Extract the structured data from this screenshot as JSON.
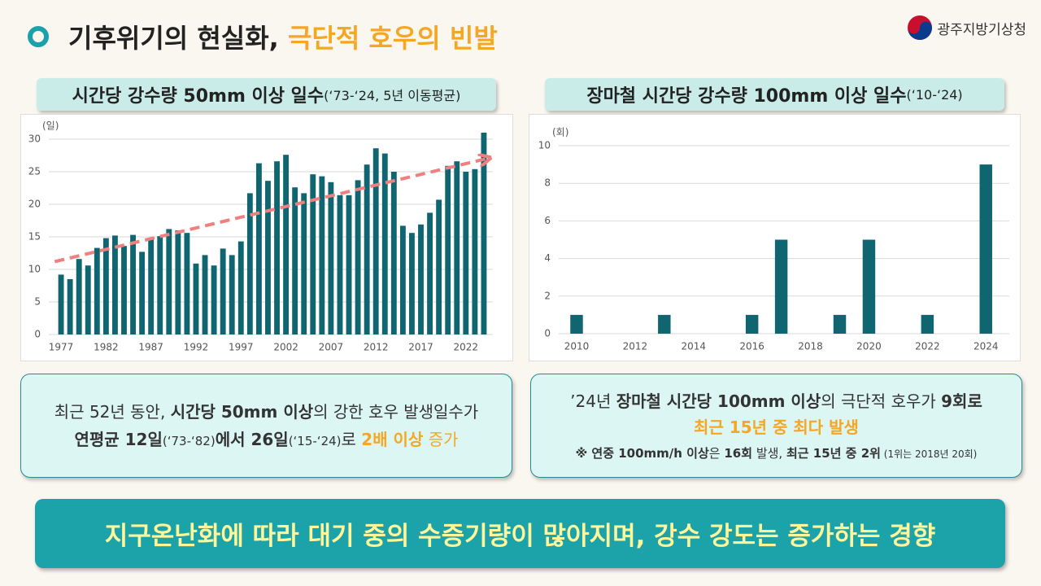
{
  "header": {
    "title": "기후위기의 현실화, ",
    "title_highlight": "극단적 호우의 빈발",
    "logo": "광주지방기상청"
  },
  "chart_data": [
    {
      "type": "bar",
      "title": "시간당 강수량 50mm 이상 일수",
      "subtitle": "(‘73-‘24, 5년 이동평균)",
      "y_label": "(일)",
      "color": "#0f6670",
      "x": [
        1977,
        1978,
        1979,
        1980,
        1981,
        1982,
        1983,
        1984,
        1985,
        1986,
        1987,
        1988,
        1989,
        1990,
        1991,
        1992,
        1993,
        1994,
        1995,
        1996,
        1997,
        1998,
        1999,
        2000,
        2001,
        2002,
        2003,
        2004,
        2005,
        2006,
        2007,
        2008,
        2009,
        2010,
        2011,
        2012,
        2013,
        2014,
        2015,
        2016,
        2017,
        2018,
        2019,
        2020,
        2021,
        2022,
        2023,
        2024
      ],
      "values": [
        9.2,
        8.5,
        11.6,
        10.6,
        13.3,
        14.8,
        15.2,
        13.6,
        15.3,
        12.7,
        14.6,
        15.1,
        16.2,
        16.0,
        15.6,
        10.9,
        12.2,
        10.6,
        13.2,
        12.2,
        14.3,
        21.7,
        26.3,
        23.6,
        26.6,
        27.6,
        22.6,
        21.7,
        24.6,
        24.3,
        23.4,
        21.4,
        21.4,
        23.7,
        26.1,
        28.6,
        27.8,
        25.0,
        16.7,
        15.6,
        16.9,
        18.7,
        20.7,
        25.9,
        26.6,
        25.0,
        25.4,
        31.0
      ],
      "xlim": [
        1976,
        2025
      ],
      "xticks": [
        1977,
        1982,
        1987,
        1992,
        1997,
        2002,
        2007,
        2012,
        2017,
        2022
      ],
      "ylim": [
        0,
        30
      ],
      "yticks": [
        0,
        5,
        10,
        15,
        20,
        25,
        30
      ],
      "grid": true,
      "trend": {
        "color": "#f08080",
        "x": [
          1976.3,
          2024.3
        ],
        "values": [
          11.2,
          27.0
        ]
      }
    },
    {
      "type": "bar",
      "title": "장마철 시간당 강수량 100mm 이상 일수",
      "subtitle": "(‘10-‘24)",
      "y_label": "(회)",
      "color": "#0f6670",
      "x": [
        2010,
        2011,
        2012,
        2013,
        2014,
        2015,
        2016,
        2017,
        2018,
        2019,
        2020,
        2021,
        2022,
        2023,
        2024
      ],
      "values": [
        1,
        0,
        0,
        1,
        0,
        0,
        1,
        5,
        0,
        1,
        5,
        0,
        1,
        0,
        9
      ],
      "xlim": [
        2009.5,
        2024.8
      ],
      "xticks": [
        2010,
        2012,
        2014,
        2016,
        2018,
        2020,
        2022,
        2024
      ],
      "ylim": [
        0,
        10
      ],
      "yticks": [
        0,
        2,
        4,
        6,
        8,
        10
      ],
      "grid": true
    }
  ],
  "notes": [
    {
      "lines": [
        [
          "최근 52년 동안, ",
          "시간당 50mm 이상",
          "의 강한 호우 발생일수가"
        ],
        [
          "연평균 12일",
          "(‘73-‘82)",
          "에서 26일",
          "(‘15-‘24)",
          "로 ",
          "2배 이상",
          " 증가"
        ]
      ]
    },
    {
      "lines": [
        [
          "’24년 ",
          "장마철 시간당 100mm 이상",
          "의 극단적 호우가 ",
          "9회로"
        ],
        [
          "최근 15년 중 최다 발생"
        ],
        [
          "※ 연중 100mm/h 이상",
          "은 ",
          "16회",
          " 발생, ",
          "최근 15년 중 2위",
          " (1위는 2018년 20회)"
        ]
      ]
    }
  ],
  "banner": "지구온난화에 따라 대기 중의 수증기량이 많아지며, 강수 강도는 증가하는 경향"
}
